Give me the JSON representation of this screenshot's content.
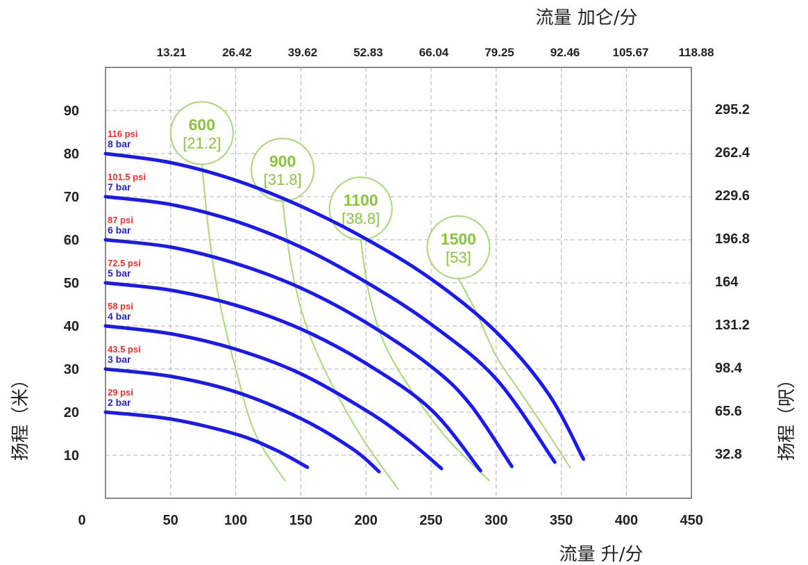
{
  "chart_data": {
    "type": "line",
    "x_axis": {
      "label": "流量 升/分",
      "ticks": [
        0,
        50,
        100,
        150,
        200,
        250,
        300,
        350,
        400,
        450
      ],
      "range": [
        0,
        450
      ]
    },
    "x_axis_top": {
      "label": "流量 加仑/分",
      "ticks": [
        "13.21",
        "26.42",
        "39.62",
        "52.83",
        "66.04",
        "79.25",
        "92.46",
        "105.67",
        "118.88"
      ]
    },
    "y_axis": {
      "label": "扬程（米）",
      "ticks": [
        10,
        20,
        30,
        40,
        50,
        60,
        70,
        80,
        90
      ],
      "range": [
        0,
        100
      ]
    },
    "y_axis_right": {
      "label": "扬程（呎）",
      "ticks": [
        "32.8",
        "65.6",
        "98.4",
        "131.2",
        "164",
        "196.8",
        "229.6",
        "262.4",
        "295.2"
      ]
    },
    "grid": true,
    "colors": {
      "pressure_curve": "#1a1aee",
      "air_curve": "#a8d878",
      "air_text": "#88c43c",
      "psi_text": "#ff2a2a",
      "bar_text": "#2222cc",
      "grid": "#b0b0b0",
      "frame": "#8a8a8a"
    },
    "series": [
      {
        "psi": "29 psi",
        "bar": "2 bar",
        "x": [
          0,
          50,
          100,
          130,
          155
        ],
        "y": [
          20,
          18.4,
          14.9,
          11.3,
          7.2
        ]
      },
      {
        "psi": "43.5 psi",
        "bar": "3 bar",
        "x": [
          0,
          50,
          100,
          150,
          190,
          210
        ],
        "y": [
          30,
          28.3,
          24.7,
          18.5,
          11.4,
          6.2
        ]
      },
      {
        "psi": "58 psi",
        "bar": "4 bar",
        "x": [
          0,
          50,
          100,
          150,
          200,
          230,
          258
        ],
        "y": [
          40,
          38.2,
          34.6,
          28.9,
          20.4,
          14.1,
          6.9
        ]
      },
      {
        "psi": "72.5 psi",
        "bar": "5 bar",
        "x": [
          0,
          50,
          100,
          150,
          200,
          250,
          288
        ],
        "y": [
          50,
          48.3,
          44.8,
          39.3,
          31.3,
          20.6,
          6.4
        ]
      },
      {
        "psi": "87 psi",
        "bar": "6 bar",
        "x": [
          0,
          50,
          100,
          150,
          200,
          250,
          280,
          312
        ],
        "y": [
          60,
          58.3,
          54.5,
          48.8,
          40.8,
          30.6,
          21.8,
          7.4
        ]
      },
      {
        "psi": "101.5 psi",
        "bar": "7 bar",
        "x": [
          0,
          50,
          100,
          150,
          200,
          250,
          300,
          345
        ],
        "y": [
          70,
          68.2,
          64.3,
          58.3,
          50.2,
          40.4,
          27.7,
          8.4
        ]
      },
      {
        "psi": "116 psi",
        "bar": "8 bar",
        "x": [
          0,
          50,
          100,
          150,
          200,
          250,
          300,
          340,
          367
        ],
        "y": [
          80,
          77.9,
          73.8,
          67.8,
          60.2,
          50.9,
          38.6,
          24.3,
          9.1
        ]
      }
    ],
    "air_curves": [
      {
        "value": "600",
        "sub": "[21.2]",
        "x": [
          74,
          80,
          88,
          100,
          115,
          138
        ],
        "y": [
          77.5,
          60,
          45,
          30,
          15,
          4
        ]
      },
      {
        "value": "900",
        "sub": "[31.8]",
        "x": [
          136,
          142,
          152,
          168,
          195,
          225
        ],
        "y": [
          69,
          55,
          42,
          30,
          15,
          2
        ]
      },
      {
        "value": "1100",
        "sub": "[38.8]",
        "x": [
          196,
          202,
          214,
          235,
          262,
          295
        ],
        "y": [
          60,
          48,
          36,
          25,
          14,
          4
        ]
      },
      {
        "value": "1500",
        "sub": "[53]",
        "x": [
          271,
          285,
          300,
          320,
          340,
          357
        ],
        "y": [
          51,
          43,
          33,
          24,
          15,
          7
        ]
      }
    ]
  }
}
